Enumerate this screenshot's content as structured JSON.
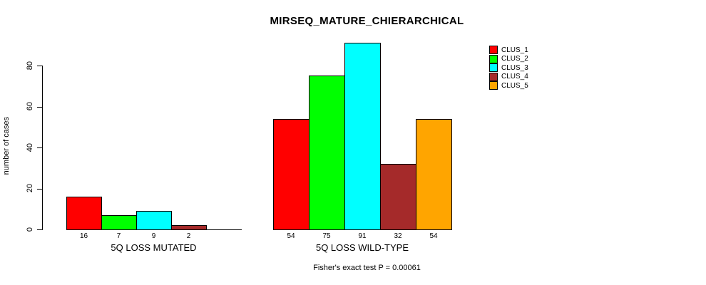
{
  "chart_data": {
    "type": "bar",
    "title": "MIRSEQ_MATURE_CHIERARCHICAL",
    "subtitle": "Fisher's exact test P = 0.00061",
    "ylabel": "number of cases",
    "xlabel": "",
    "ylim": [
      0,
      91
    ],
    "yticks": [
      0,
      20,
      40,
      60,
      80
    ],
    "grid": false,
    "legend_position": "top-right",
    "categories": [
      "5Q LOSS MUTATED",
      "5Q LOSS WILD-TYPE"
    ],
    "series": [
      {
        "name": "CLUS_1",
        "color": "#FF0000",
        "values": [
          16,
          54
        ]
      },
      {
        "name": "CLUS_2",
        "color": "#00FF00",
        "values": [
          7,
          75
        ]
      },
      {
        "name": "CLUS_3",
        "color": "#00FFFF",
        "values": [
          9,
          91
        ]
      },
      {
        "name": "CLUS_4",
        "color": "#A52A2A",
        "values": [
          2,
          32
        ]
      },
      {
        "name": "CLUS_5",
        "color": "#FFA500",
        "values": [
          0,
          54
        ]
      }
    ],
    "bar_value_labels": [
      [
        "16",
        "7",
        "9",
        "2",
        ""
      ],
      [
        "54",
        "75",
        "91",
        "32",
        "54"
      ]
    ],
    "axis_color": "#000000",
    "bar_border_color": "#000000",
    "background_color": "#FFFFFF"
  }
}
